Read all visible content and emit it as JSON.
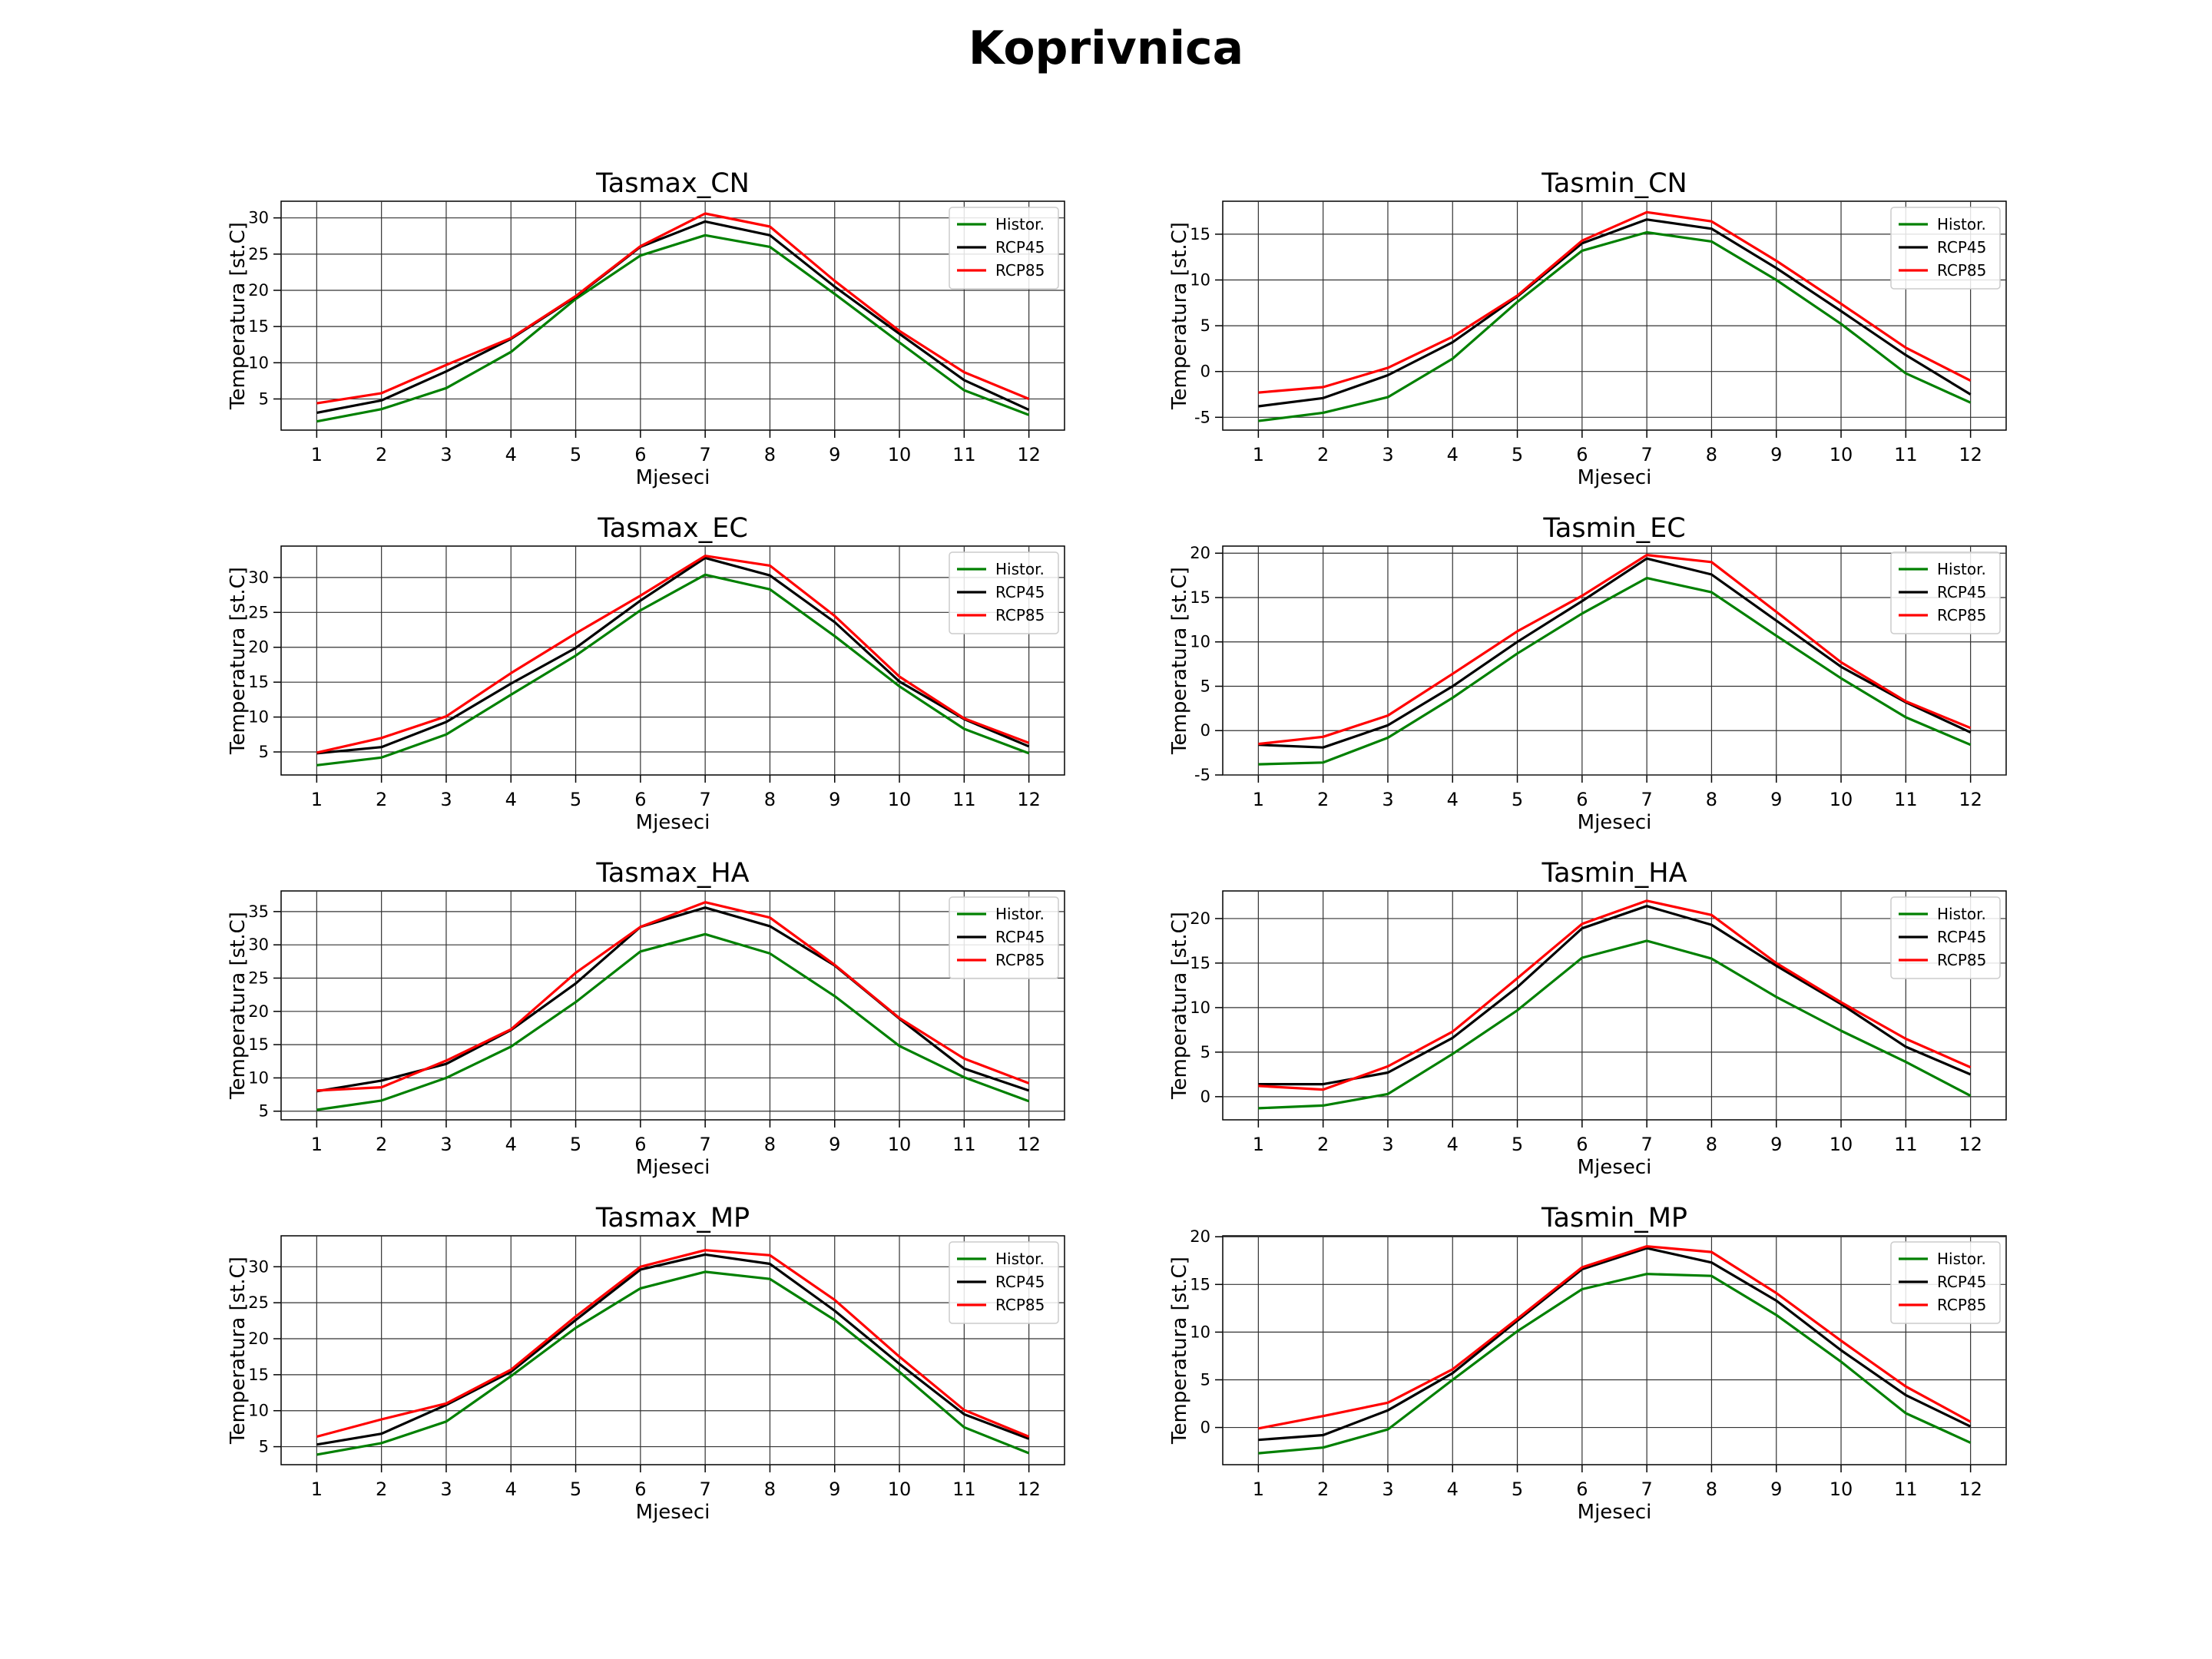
{
  "title": "Koprivnica",
  "colors": {
    "historical": "#008000",
    "rcp45": "#000000",
    "rcp85": "#ff0000"
  },
  "chart_data": [
    {
      "type": "line",
      "title": "Tasmax_CN",
      "xlabel": "Mjeseci",
      "ylabel": "Temperatura [st.C]",
      "categories": [
        "1",
        "2",
        "3",
        "4",
        "5",
        "6",
        "7",
        "8",
        "9",
        "10",
        "11",
        "12"
      ],
      "ylim": [
        0.7,
        32.3
      ],
      "yticks": [
        "5",
        "10",
        "15",
        "20",
        "25",
        "30"
      ],
      "grid": true,
      "legend": "top-right",
      "series": [
        {
          "name": "Histor.",
          "values": [
            1.9,
            3.6,
            6.5,
            11.5,
            18.8,
            24.8,
            27.6,
            26.0,
            19.5,
            12.8,
            6.2,
            2.8
          ]
        },
        {
          "name": "RCP45",
          "values": [
            3.1,
            4.8,
            8.8,
            13.3,
            19.1,
            26.0,
            29.5,
            27.6,
            20.5,
            14.0,
            7.6,
            3.5
          ]
        },
        {
          "name": "RCP85",
          "values": [
            4.4,
            5.8,
            9.7,
            13.4,
            19.2,
            26.1,
            30.6,
            28.8,
            21.3,
            14.4,
            8.7,
            5.0
          ]
        }
      ]
    },
    {
      "type": "line",
      "title": "Tasmin_CN",
      "xlabel": "Mjeseci",
      "ylabel": "Temperatura [st.C]",
      "categories": [
        "1",
        "2",
        "3",
        "4",
        "5",
        "6",
        "7",
        "8",
        "9",
        "10",
        "11",
        "12"
      ],
      "ylim": [
        -6.4,
        18.6
      ],
      "yticks": [
        "-5",
        "0",
        "5",
        "10",
        "15"
      ],
      "grid": true,
      "legend": "top-right",
      "series": [
        {
          "name": "Histor.",
          "values": [
            -5.4,
            -4.5,
            -2.8,
            1.4,
            7.6,
            13.2,
            15.2,
            14.2,
            10.0,
            5.2,
            -0.2,
            -3.4
          ]
        },
        {
          "name": "RCP45",
          "values": [
            -3.8,
            -2.9,
            -0.4,
            3.2,
            8.2,
            14.0,
            16.6,
            15.6,
            11.3,
            6.6,
            1.8,
            -2.5
          ]
        },
        {
          "name": "RCP85",
          "values": [
            -2.3,
            -1.7,
            0.4,
            3.8,
            8.3,
            14.3,
            17.4,
            16.4,
            12.1,
            7.4,
            2.6,
            -1.0
          ]
        }
      ]
    },
    {
      "type": "line",
      "title": "Tasmax_EC",
      "xlabel": "Mjeseci",
      "ylabel": "Temperatura [st.C]",
      "categories": [
        "1",
        "2",
        "3",
        "4",
        "5",
        "6",
        "7",
        "8",
        "9",
        "10",
        "11",
        "12"
      ],
      "ylim": [
        1.7,
        34.5
      ],
      "yticks": [
        "5",
        "10",
        "15",
        "20",
        "25",
        "30"
      ],
      "grid": true,
      "legend": "top-right",
      "series": [
        {
          "name": "Histor.",
          "values": [
            3.1,
            4.2,
            7.5,
            13.2,
            18.8,
            25.3,
            30.4,
            28.3,
            21.6,
            14.4,
            8.3,
            4.8
          ]
        },
        {
          "name": "RCP45",
          "values": [
            4.8,
            5.7,
            9.3,
            14.8,
            19.9,
            26.7,
            32.8,
            30.3,
            23.6,
            15.1,
            9.7,
            5.8
          ]
        },
        {
          "name": "RCP85",
          "values": [
            4.9,
            7.0,
            10.1,
            16.3,
            22.0,
            27.4,
            33.1,
            31.7,
            24.5,
            15.8,
            9.8,
            6.3
          ]
        }
      ]
    },
    {
      "type": "line",
      "title": "Tasmin_EC",
      "xlabel": "Mjeseci",
      "ylabel": "Temperatura [st.C]",
      "categories": [
        "1",
        "2",
        "3",
        "4",
        "5",
        "6",
        "7",
        "8",
        "9",
        "10",
        "11",
        "12"
      ],
      "ylim": [
        -5.0,
        20.8
      ],
      "yticks": [
        "-5",
        "0",
        "5",
        "10",
        "15",
        "20"
      ],
      "grid": true,
      "legend": "top-right",
      "series": [
        {
          "name": "Histor.",
          "values": [
            -3.8,
            -3.6,
            -0.8,
            3.7,
            8.7,
            13.2,
            17.2,
            15.6,
            10.7,
            5.9,
            1.5,
            -1.6
          ]
        },
        {
          "name": "RCP45",
          "values": [
            -1.6,
            -1.9,
            0.6,
            5.0,
            10.0,
            14.6,
            19.4,
            17.6,
            12.4,
            7.2,
            3.2,
            -0.2
          ]
        },
        {
          "name": "RCP85",
          "values": [
            -1.5,
            -0.7,
            1.7,
            6.4,
            11.2,
            15.2,
            19.8,
            19.0,
            13.4,
            7.7,
            3.3,
            0.3
          ]
        }
      ]
    },
    {
      "type": "line",
      "title": "Tasmax_HA",
      "xlabel": "Mjeseci",
      "ylabel": "Temperatura [st.C]",
      "categories": [
        "1",
        "2",
        "3",
        "4",
        "5",
        "6",
        "7",
        "8",
        "9",
        "10",
        "11",
        "12"
      ],
      "ylim": [
        3.7,
        38.1
      ],
      "yticks": [
        "5",
        "10",
        "15",
        "20",
        "25",
        "30",
        "35"
      ],
      "grid": true,
      "legend": "top-right",
      "series": [
        {
          "name": "Histor.",
          "values": [
            5.2,
            6.6,
            10.0,
            14.7,
            21.4,
            29.0,
            31.6,
            28.7,
            22.3,
            14.8,
            10.1,
            6.5
          ]
        },
        {
          "name": "RCP45",
          "values": [
            8.0,
            9.6,
            12.1,
            17.2,
            24.2,
            32.7,
            35.6,
            32.8,
            26.9,
            18.9,
            11.4,
            8.1
          ]
        },
        {
          "name": "RCP85",
          "values": [
            8.1,
            8.6,
            12.6,
            17.3,
            25.8,
            32.7,
            36.4,
            34.1,
            27.0,
            19.0,
            12.9,
            9.2
          ]
        }
      ]
    },
    {
      "type": "line",
      "title": "Tasmin_HA",
      "xlabel": "Mjeseci",
      "ylabel": "Temperatura [st.C]",
      "categories": [
        "1",
        "2",
        "3",
        "4",
        "5",
        "6",
        "7",
        "8",
        "9",
        "10",
        "11",
        "12"
      ],
      "ylim": [
        -2.6,
        23.1
      ],
      "yticks": [
        "0",
        "5",
        "10",
        "15",
        "20"
      ],
      "grid": true,
      "legend": "top-right",
      "series": [
        {
          "name": "Histor.",
          "values": [
            -1.3,
            -1.0,
            0.3,
            4.8,
            9.7,
            15.6,
            17.5,
            15.5,
            11.2,
            7.4,
            3.9,
            0.1
          ]
        },
        {
          "name": "RCP45",
          "values": [
            1.4,
            1.4,
            2.7,
            6.6,
            12.3,
            18.9,
            21.4,
            19.3,
            14.7,
            10.4,
            5.6,
            2.5
          ]
        },
        {
          "name": "RCP85",
          "values": [
            1.2,
            0.8,
            3.4,
            7.3,
            13.3,
            19.4,
            22.0,
            20.4,
            15.0,
            10.6,
            6.5,
            3.3
          ]
        }
      ]
    },
    {
      "type": "line",
      "title": "Tasmax_MP",
      "xlabel": "Mjeseci",
      "ylabel": "Temperatura [st.C]",
      "categories": [
        "1",
        "2",
        "3",
        "4",
        "5",
        "6",
        "7",
        "8",
        "9",
        "10",
        "11",
        "12"
      ],
      "ylim": [
        2.5,
        34.3
      ],
      "yticks": [
        "5",
        "10",
        "15",
        "20",
        "25",
        "30"
      ],
      "grid": true,
      "legend": "top-right",
      "series": [
        {
          "name": "Histor.",
          "values": [
            3.9,
            5.5,
            8.5,
            14.8,
            21.5,
            27.0,
            29.3,
            28.3,
            22.6,
            15.4,
            7.7,
            4.1
          ]
        },
        {
          "name": "RCP45",
          "values": [
            5.3,
            6.8,
            10.8,
            15.4,
            22.6,
            29.6,
            31.7,
            30.4,
            23.9,
            16.5,
            9.5,
            6.1
          ]
        },
        {
          "name": "RCP85",
          "values": [
            6.4,
            8.8,
            11.0,
            15.7,
            23.1,
            30.0,
            32.3,
            31.6,
            25.4,
            17.5,
            10.1,
            6.4
          ]
        }
      ]
    },
    {
      "type": "line",
      "title": "Tasmin_MP",
      "xlabel": "Mjeseci",
      "ylabel": "Temperatura [st.C]",
      "categories": [
        "1",
        "2",
        "3",
        "4",
        "5",
        "6",
        "7",
        "8",
        "9",
        "10",
        "11",
        "12"
      ],
      "ylim": [
        -3.9,
        20.1
      ],
      "yticks": [
        "0",
        "5",
        "10",
        "15",
        "20"
      ],
      "grid": true,
      "legend": "top-right",
      "series": [
        {
          "name": "Histor.",
          "values": [
            -2.7,
            -2.1,
            -0.2,
            5.0,
            10.1,
            14.5,
            16.1,
            15.9,
            11.8,
            6.9,
            1.5,
            -1.6
          ]
        },
        {
          "name": "RCP45",
          "values": [
            -1.3,
            -0.8,
            1.8,
            5.7,
            11.2,
            16.6,
            18.8,
            17.3,
            13.3,
            8.1,
            3.4,
            0.1
          ]
        },
        {
          "name": "RCP85",
          "values": [
            -0.1,
            1.2,
            2.6,
            6.1,
            11.4,
            16.8,
            19.0,
            18.4,
            14.1,
            9.1,
            4.3,
            0.6
          ]
        }
      ]
    }
  ]
}
